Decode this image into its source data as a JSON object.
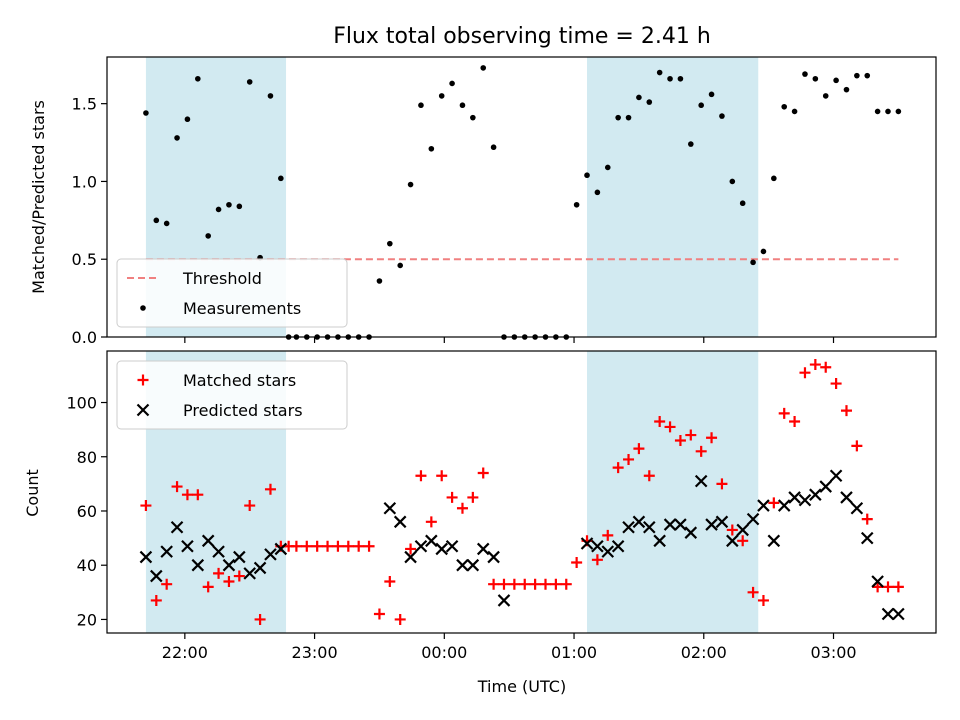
{
  "chart_data": {
    "title": "Flux total observing time = 2.41 h",
    "shared_x": {
      "label": "Time (UTC)",
      "unit": "hours since 00:00 UTC (negative = previous day)",
      "range": [
        -2.6,
        3.79
      ],
      "ticks": [
        {
          "value": -2.0,
          "label": "22:00"
        },
        {
          "value": -1.0,
          "label": "23:00"
        },
        {
          "value": 0.0,
          "label": "00:00"
        },
        {
          "value": 1.0,
          "label": "01:00"
        },
        {
          "value": 2.0,
          "label": "02:00"
        },
        {
          "value": 3.0,
          "label": "03:00"
        }
      ]
    },
    "shaded_spans": [
      {
        "start": -2.3,
        "end": -1.22,
        "color": "#add8e6"
      },
      {
        "start": 1.1,
        "end": 2.42,
        "color": "#add8e6"
      }
    ],
    "panels": [
      {
        "type": "scatter",
        "ylabel": "Matched/Predicted stars",
        "ylim": [
          0,
          1.8
        ],
        "yticks": [
          0.0,
          0.5,
          1.0,
          1.5
        ],
        "ytick_labels": [
          "0.0",
          "0.5",
          "1.0",
          "1.5"
        ],
        "legend_position": "lower-left",
        "threshold": {
          "name": "Threshold",
          "value": 0.5,
          "x_range": [
            -2.3,
            3.5
          ],
          "color": "#f08080",
          "style": "dashed"
        },
        "series": [
          {
            "name": "Measurements",
            "color": "#000000",
            "marker": "dot",
            "x": [
              -2.3,
              -2.22,
              -2.14,
              -2.06,
              -1.98,
              -1.9,
              -1.82,
              -1.74,
              -1.66,
              -1.58,
              -1.5,
              -1.42,
              -1.34,
              -1.26,
              -1.2,
              -1.14,
              -1.06,
              -0.98,
              -0.9,
              -0.82,
              -0.74,
              -0.66,
              -0.58,
              -0.5,
              -0.42,
              -0.34,
              -0.26,
              -0.18,
              -0.1,
              -0.02,
              0.06,
              0.14,
              0.22,
              0.3,
              0.38,
              0.46,
              0.54,
              0.62,
              0.7,
              0.78,
              0.86,
              0.94,
              1.02,
              1.1,
              1.18,
              1.26,
              1.34,
              1.42,
              1.5,
              1.58,
              1.66,
              1.74,
              1.82,
              1.9,
              1.98,
              2.06,
              2.14,
              2.22,
              2.3,
              2.38,
              2.46,
              2.54,
              2.62,
              2.7,
              2.78,
              2.86,
              2.94,
              3.02,
              3.1,
              3.18,
              3.26,
              3.34,
              3.42,
              3.5
            ],
            "y": [
              1.44,
              0.75,
              0.73,
              1.28,
              1.4,
              1.66,
              0.65,
              0.82,
              0.85,
              0.84,
              1.64,
              0.51,
              1.55,
              1.02,
              0.0,
              0.0,
              0.0,
              0.0,
              0.0,
              0.0,
              0.0,
              0.0,
              0.0,
              0.36,
              0.6,
              0.46,
              0.98,
              1.49,
              1.21,
              1.55,
              1.63,
              1.49,
              1.41,
              1.73,
              1.22,
              0.0,
              0.0,
              0.0,
              0.0,
              0.0,
              0.0,
              0.0,
              0.85,
              1.04,
              0.93,
              1.09,
              1.41,
              1.41,
              1.54,
              1.51,
              1.7,
              1.66,
              1.66,
              1.24,
              1.49,
              1.56,
              1.42,
              1.0,
              0.86,
              0.48,
              0.55,
              1.02,
              1.48,
              1.45,
              1.69,
              1.66,
              1.55,
              1.65,
              1.59,
              1.68,
              1.68,
              1.45,
              1.45,
              1.45
            ]
          }
        ]
      },
      {
        "type": "scatter",
        "ylabel": "Count",
        "ylim": [
          15,
          119
        ],
        "yticks": [
          20,
          40,
          60,
          80,
          100
        ],
        "ytick_labels": [
          "20",
          "40",
          "60",
          "80",
          "100"
        ],
        "legend_position": "upper-left",
        "series": [
          {
            "name": "Matched stars",
            "color": "#ff0000",
            "marker": "plus",
            "x": [
              -2.3,
              -2.22,
              -2.14,
              -2.06,
              -1.98,
              -1.9,
              -1.82,
              -1.74,
              -1.66,
              -1.58,
              -1.5,
              -1.42,
              -1.34,
              -1.26,
              -1.2,
              -1.14,
              -1.06,
              -0.98,
              -0.9,
              -0.82,
              -0.74,
              -0.66,
              -0.58,
              -0.5,
              -0.42,
              -0.34,
              -0.26,
              -0.18,
              -0.1,
              -0.02,
              0.06,
              0.14,
              0.22,
              0.3,
              0.38,
              0.46,
              0.54,
              0.62,
              0.7,
              0.78,
              0.86,
              0.94,
              1.02,
              1.1,
              1.18,
              1.26,
              1.34,
              1.42,
              1.5,
              1.58,
              1.66,
              1.74,
              1.82,
              1.9,
              1.98,
              2.06,
              2.14,
              2.22,
              2.3,
              2.38,
              2.46,
              2.54,
              2.62,
              2.7,
              2.78,
              2.86,
              2.94,
              3.02,
              3.1,
              3.18,
              3.26,
              3.34,
              3.42,
              3.5
            ],
            "y": [
              62,
              27,
              33,
              69,
              66,
              66,
              32,
              37,
              34,
              36,
              62,
              20,
              68,
              47,
              47,
              47,
              47,
              47,
              47,
              47,
              47,
              47,
              47,
              22,
              34,
              20,
              46,
              73,
              56,
              73,
              65,
              61,
              65,
              74,
              33,
              33,
              33,
              33,
              33,
              33,
              33,
              33,
              41,
              49,
              42,
              51,
              76,
              79,
              83,
              73,
              93,
              91,
              86,
              88,
              82,
              87,
              70,
              53,
              49,
              30,
              27,
              63,
              96,
              93,
              111,
              114,
              113,
              107,
              97,
              84,
              57,
              32,
              32,
              32
            ]
          },
          {
            "name": "Predicted stars",
            "color": "#000000",
            "marker": "x",
            "x": [
              -2.3,
              -2.22,
              -2.14,
              -2.06,
              -1.98,
              -1.9,
              -1.82,
              -1.74,
              -1.66,
              -1.58,
              -1.5,
              -1.42,
              -1.34,
              -1.26,
              -0.42,
              -0.34,
              -0.26,
              -0.18,
              -0.1,
              -0.02,
              0.06,
              0.14,
              0.22,
              0.3,
              0.38,
              0.46,
              1.1,
              1.18,
              1.26,
              1.34,
              1.42,
              1.5,
              1.58,
              1.66,
              1.74,
              1.82,
              1.9,
              1.98,
              2.06,
              2.14,
              2.22,
              2.3,
              2.38,
              2.46,
              2.54,
              2.62,
              2.7,
              2.78,
              2.86,
              2.94,
              3.02,
              3.1,
              3.18,
              3.26,
              3.34,
              3.42,
              3.5
            ],
            "y": [
              43,
              36,
              45,
              54,
              47,
              40,
              49,
              45,
              40,
              43,
              37,
              39,
              44,
              46,
              61,
              56,
              43,
              47,
              49,
              46,
              47,
              40,
              40,
              46,
              43,
              27,
              48,
              47,
              45,
              47,
              54,
              56,
              54,
              49,
              55,
              55,
              52,
              71,
              55,
              56,
              49,
              53,
              57,
              62,
              49,
              62,
              65,
              64,
              66,
              69,
              73,
              65,
              61,
              50,
              34,
              22,
              22
            ]
          }
        ]
      }
    ]
  }
}
